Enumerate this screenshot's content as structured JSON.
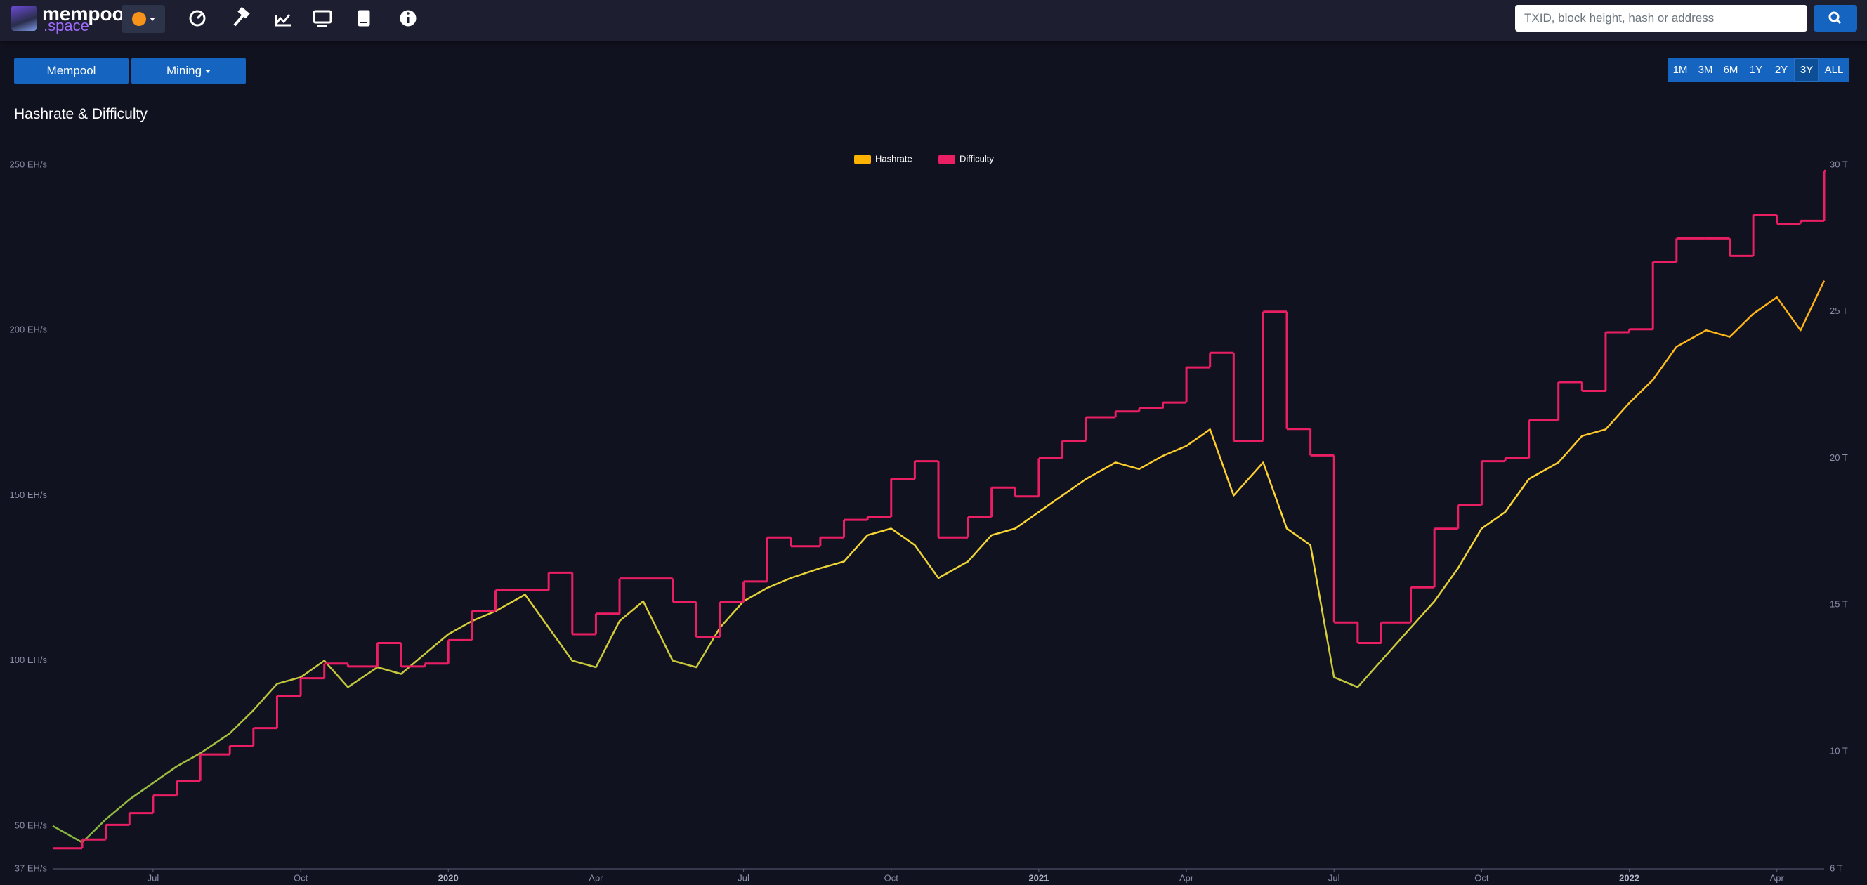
{
  "header": {
    "logo": "mempool",
    "logo_sub": ".space",
    "search_placeholder": "TXID, block height, hash or address"
  },
  "nav": {
    "buttons": [
      "Mempool",
      "Mining"
    ],
    "ranges": [
      "1M",
      "3M",
      "6M",
      "1Y",
      "2Y",
      "3Y",
      "ALL"
    ],
    "active_range": "3Y"
  },
  "chart_data": {
    "type": "line",
    "title": "Hashrate & Difficulty",
    "x": [
      2019.33,
      2019.38,
      2019.42,
      2019.46,
      2019.5,
      2019.54,
      2019.58,
      2019.63,
      2019.67,
      2019.71,
      2019.75,
      2019.79,
      2019.83,
      2019.88,
      2019.92,
      2019.96,
      2020.0,
      2020.04,
      2020.08,
      2020.13,
      2020.17,
      2020.21,
      2020.25,
      2020.29,
      2020.33,
      2020.38,
      2020.42,
      2020.46,
      2020.5,
      2020.54,
      2020.58,
      2020.63,
      2020.67,
      2020.71,
      2020.75,
      2020.79,
      2020.83,
      2020.88,
      2020.92,
      2020.96,
      2021.0,
      2021.04,
      2021.08,
      2021.13,
      2021.17,
      2021.21,
      2021.25,
      2021.29,
      2021.33,
      2021.38,
      2021.42,
      2021.46,
      2021.5,
      2021.54,
      2021.58,
      2021.63,
      2021.67,
      2021.71,
      2021.75,
      2021.79,
      2021.83,
      2021.88,
      2021.92,
      2021.96,
      2022.0,
      2022.04,
      2022.08,
      2022.13,
      2022.17,
      2022.21,
      2022.25,
      2022.29,
      2022.33
    ],
    "series": [
      {
        "name": "Hashrate",
        "color": "#ffb300",
        "gradient": [
          "#7cb342",
          "#fdd835",
          "#ff9800"
        ],
        "values": [
          50,
          45,
          52,
          58,
          63,
          68,
          72,
          78,
          85,
          93,
          95,
          100,
          92,
          98,
          96,
          102,
          108,
          112,
          115,
          120,
          110,
          100,
          98,
          112,
          118,
          100,
          98,
          110,
          118,
          122,
          125,
          128,
          130,
          138,
          140,
          135,
          125,
          130,
          138,
          140,
          145,
          150,
          155,
          160,
          158,
          162,
          165,
          170,
          150,
          160,
          140,
          135,
          95,
          92,
          100,
          110,
          118,
          128,
          140,
          145,
          155,
          160,
          168,
          170,
          178,
          185,
          195,
          200,
          198,
          205,
          210,
          200,
          215
        ]
      },
      {
        "name": "Difficulty",
        "color": "#e91e63",
        "axis": "y2",
        "step": true,
        "values": [
          6.7,
          7.0,
          7.5,
          7.9,
          8.5,
          9.0,
          9.9,
          10.2,
          10.8,
          11.9,
          12.5,
          13.0,
          12.9,
          13.7,
          12.9,
          13.0,
          13.8,
          14.8,
          15.5,
          15.5,
          16.1,
          14.0,
          14.7,
          15.9,
          15.9,
          15.1,
          13.9,
          15.1,
          15.8,
          17.3,
          17.0,
          17.3,
          17.9,
          18.0,
          19.3,
          19.9,
          17.3,
          18.0,
          19.0,
          18.7,
          20.0,
          20.6,
          21.4,
          21.6,
          21.7,
          21.9,
          23.1,
          23.6,
          20.6,
          25.0,
          21.0,
          20.1,
          14.4,
          13.7,
          14.4,
          15.6,
          17.6,
          18.4,
          19.9,
          20.0,
          21.3,
          22.6,
          22.3,
          24.3,
          24.4,
          26.7,
          27.5,
          27.5,
          26.9,
          28.3,
          28.0,
          28.1,
          29.8
        ]
      }
    ],
    "xlim": [
      2019.33,
      2022.33
    ],
    "xticks": [
      {
        "value": 2019.5,
        "label": "Jul"
      },
      {
        "value": 2019.75,
        "label": "Oct"
      },
      2020,
      {
        "value": 2020.25,
        "label": "Apr"
      },
      {
        "value": 2020.5,
        "label": "Jul"
      },
      {
        "value": 2020.75,
        "label": "Oct"
      },
      2021,
      {
        "value": 2021.25,
        "label": "Apr"
      },
      {
        "value": 2021.5,
        "label": "Jul"
      },
      {
        "value": 2021.75,
        "label": "Oct"
      },
      2022,
      {
        "value": 2022.25,
        "label": "Apr"
      }
    ],
    "ylim": [
      37,
      250
    ],
    "yticks": [
      {
        "value": 37,
        "label": "37 EH/s"
      },
      {
        "value": 50,
        "label": "50 EH/s"
      },
      {
        "value": 100,
        "label": "100 EH/s"
      },
      {
        "value": 150,
        "label": "150 EH/s"
      },
      {
        "value": 200,
        "label": "200 EH/s"
      },
      {
        "value": 250,
        "label": "250 EH/s"
      }
    ],
    "y2lim": [
      6,
      30
    ],
    "y2ticks": [
      {
        "value": 6,
        "label": "6 T"
      },
      {
        "value": 10,
        "label": "10 T"
      },
      {
        "value": 15,
        "label": "15 T"
      },
      {
        "value": 20,
        "label": "20 T"
      },
      {
        "value": 25,
        "label": "25 T"
      },
      {
        "value": 30,
        "label": "30 T"
      }
    ],
    "grid": false,
    "legend": "top-center"
  }
}
